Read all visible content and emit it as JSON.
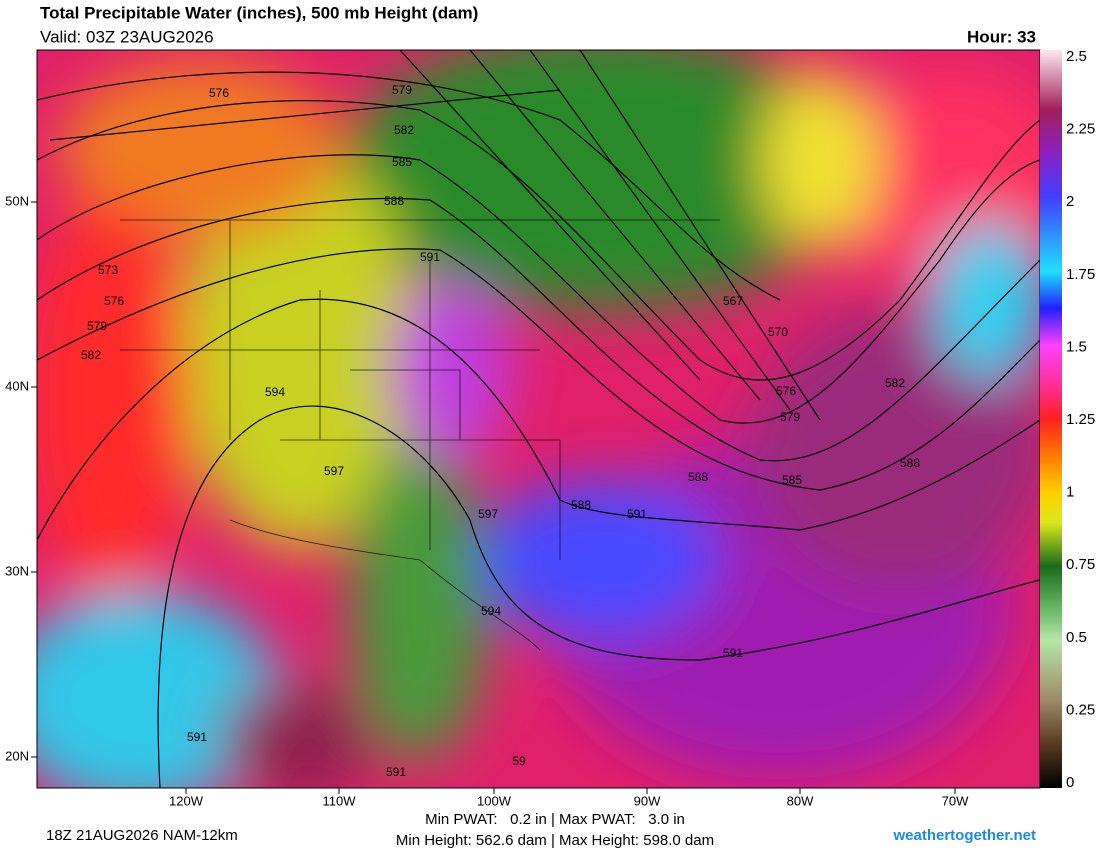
{
  "header": {
    "title": "Total Precipitable Water (inches), 500 mb Height (dam)",
    "valid": "Valid: 03Z 23AUG2026",
    "hour": "Hour: 33"
  },
  "colorbar": {
    "range": [
      0,
      2.5
    ],
    "ticks": [
      2.5,
      2.25,
      2,
      1.75,
      1.5,
      1.25,
      1,
      0.75,
      0.5,
      0.25,
      0
    ]
  },
  "map": {
    "lat_labels": [
      "50N",
      "40N",
      "30N",
      "20N"
    ],
    "lon_labels": [
      "120W",
      "110W",
      "100W",
      "90W",
      "80W",
      "70W"
    ],
    "contour_labels": [
      "576",
      "579",
      "582",
      "585",
      "588",
      "591",
      "573",
      "576",
      "579",
      "582",
      "594",
      "597",
      "588",
      "597",
      "591",
      "588",
      "585",
      "594",
      "591",
      "567",
      "570",
      "576",
      "579",
      "582",
      "588",
      "591",
      "591",
      "59"
    ]
  },
  "footer": {
    "run": "18Z 21AUG2026 NAM-12km",
    "pwat": "Min PWAT:   0.2 in | Max PWAT:   3.0 in",
    "height": "Min Height: 562.6 dam | Max Height: 598.0 dam",
    "brand": "weathertogether.net"
  }
}
